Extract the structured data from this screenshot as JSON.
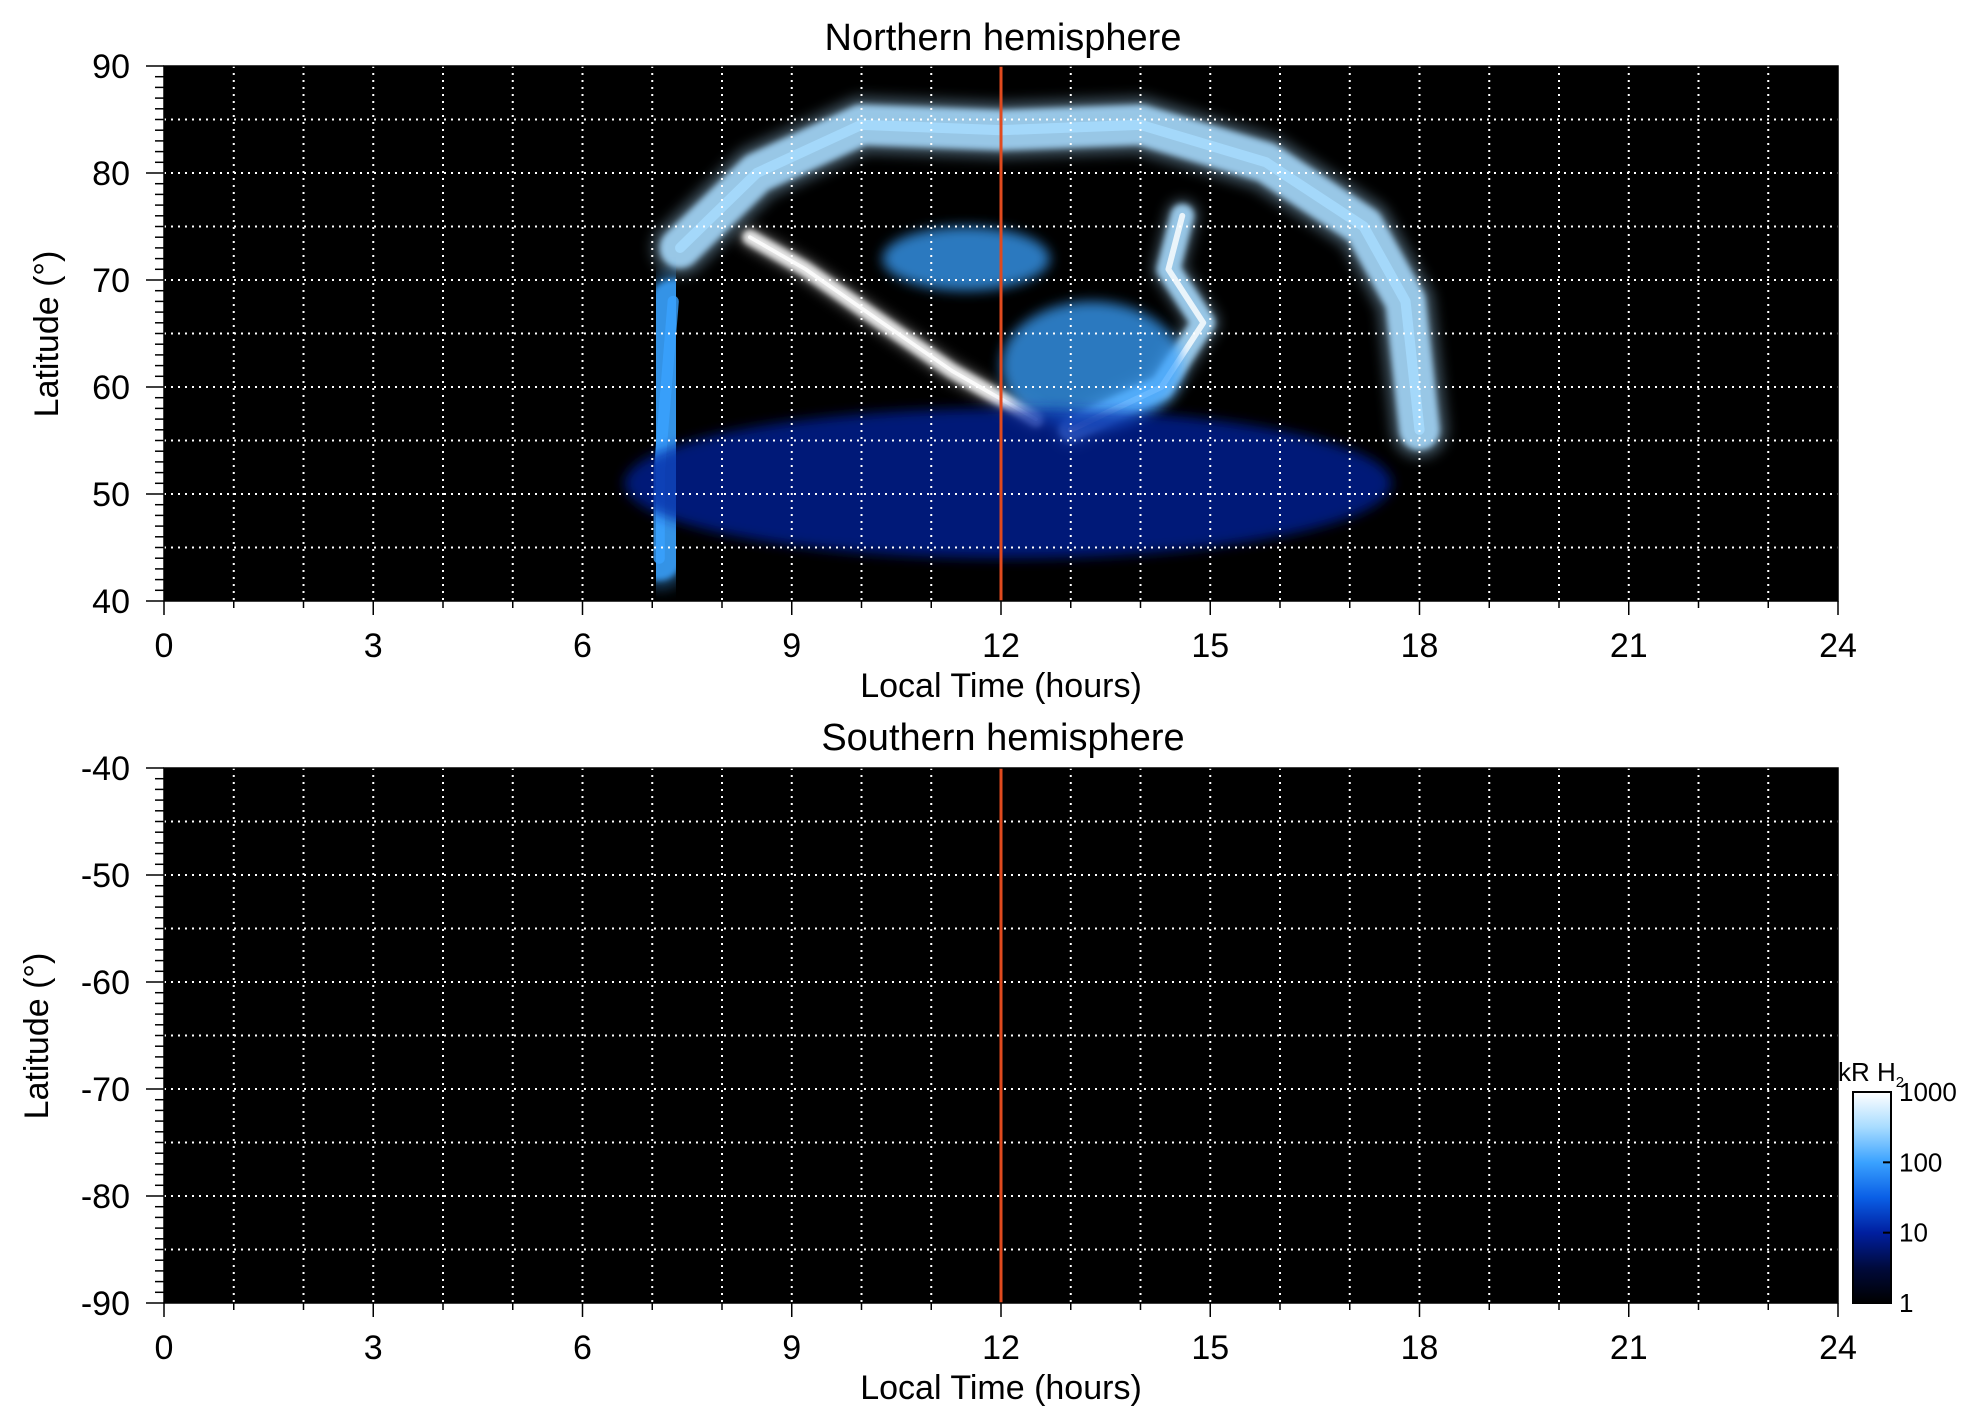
{
  "figure": {
    "colorbar": {
      "label_main": "kR H",
      "label_sub": "2",
      "scale": "log",
      "range": [
        1,
        1000
      ],
      "tick_labels": [
        "1000",
        "100",
        "10",
        "1"
      ],
      "tick_values": [
        1000,
        100,
        10,
        1
      ],
      "colors": [
        "#000000",
        "#000a3c",
        "#001fa0",
        "#0a5fe6",
        "#3aa2ff",
        "#a8dcff",
        "#ffffff"
      ]
    }
  },
  "chart_data": [
    {
      "type": "heatmap",
      "title": "Northern hemisphere",
      "xlabel": "Local Time (hours)",
      "ylabel": "Latitude (°)",
      "xlim": [
        0,
        24
      ],
      "ylim": [
        40,
        90
      ],
      "x_tick_labels": [
        "0",
        "3",
        "6",
        "9",
        "12",
        "15",
        "18",
        "21",
        "24"
      ],
      "x_tick_values": [
        0,
        3,
        6,
        9,
        12,
        15,
        18,
        21,
        24
      ],
      "y_tick_labels": [
        "40",
        "50",
        "60",
        "70",
        "80",
        "90"
      ],
      "y_tick_values": [
        40,
        50,
        60,
        70,
        80,
        90
      ],
      "grid": true,
      "grid_x_step": 1,
      "grid_y_step": 5,
      "reference_line": {
        "x": 12,
        "color": "#e04a1e"
      },
      "background": "#000000",
      "emission_units": "kR",
      "features": [
        {
          "kind": "band",
          "points": [
            [
              7.4,
              73
            ],
            [
              8.5,
              80
            ],
            [
              10,
              84.5
            ],
            [
              12,
              84
            ],
            [
              14,
              84.5
            ],
            [
              15.8,
              81
            ],
            [
              17.2,
              75
            ],
            [
              17.8,
              68
            ],
            [
              18,
              56
            ]
          ],
          "width": 3.8,
          "intensity": 220
        },
        {
          "kind": "band",
          "points": [
            [
              7.3,
              68
            ],
            [
              7.2,
              60
            ],
            [
              7.1,
              52
            ],
            [
              7.1,
              44
            ]
          ],
          "width": 4.2,
          "intensity": 60
        },
        {
          "kind": "band",
          "points": [
            [
              8.4,
              74
            ],
            [
              9.2,
              71
            ],
            [
              10.3,
              66
            ],
            [
              11.3,
              61.5
            ],
            [
              12.5,
              57
            ]
          ],
          "width": 1.4,
          "intensity": 700
        },
        {
          "kind": "band",
          "points": [
            [
              14.6,
              76
            ],
            [
              14.4,
              71
            ],
            [
              14.9,
              66
            ],
            [
              14.3,
              60
            ],
            [
              13,
              56
            ]
          ],
          "width": 2.2,
          "intensity": 550
        },
        {
          "kind": "patch",
          "points": [
            [
              13.3,
              62
            ]
          ],
          "rx": 1.3,
          "ry": 6,
          "intensity": 120
        },
        {
          "kind": "patch",
          "points": [
            [
              11.5,
              72
            ]
          ],
          "rx": 1.2,
          "ry": 3,
          "intensity": 70
        },
        {
          "kind": "patch",
          "points": [
            [
              12.1,
              51
            ]
          ],
          "rx": 5.5,
          "ry": 7,
          "intensity": 12
        }
      ]
    },
    {
      "type": "heatmap",
      "title": "Southern hemisphere",
      "xlabel": "Local Time (hours)",
      "ylabel": "Latitude (°)",
      "xlim": [
        0,
        24
      ],
      "ylim": [
        -90,
        -40
      ],
      "x_tick_labels": [
        "0",
        "3",
        "6",
        "9",
        "12",
        "15",
        "18",
        "21",
        "24"
      ],
      "x_tick_values": [
        0,
        3,
        6,
        9,
        12,
        15,
        18,
        21,
        24
      ],
      "y_tick_labels": [
        "-40",
        "-50",
        "-60",
        "-70",
        "-80",
        "-90"
      ],
      "y_tick_values": [
        -40,
        -50,
        -60,
        -70,
        -80,
        -90
      ],
      "grid": true,
      "grid_x_step": 1,
      "grid_y_step": 5,
      "reference_line": {
        "x": 12,
        "color": "#e04a1e"
      },
      "background": "#000000",
      "emission_units": "kR",
      "features": []
    }
  ]
}
